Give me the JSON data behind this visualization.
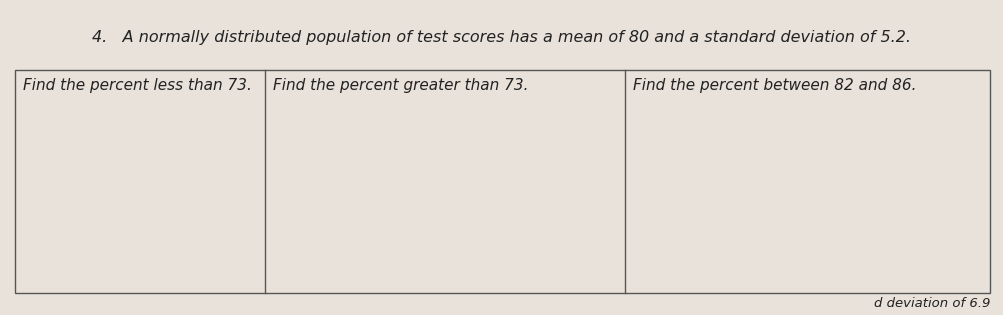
{
  "title": "4.   A normally distributed population of test scores has a mean of 80 and a standard deviation of 5.2.",
  "col1_header": "Find the percent less than 73.",
  "col2_header": "Find the percent greater than 73.",
  "col3_header": "Find the percent between 82 and 86.",
  "background_color": "#e8e2da",
  "border_color": "#555555",
  "text_color": "#222222",
  "footer_text": "d deviation of 6.9",
  "title_fontsize": 11.5,
  "header_fontsize": 11.0,
  "footer_fontsize": 9.5
}
